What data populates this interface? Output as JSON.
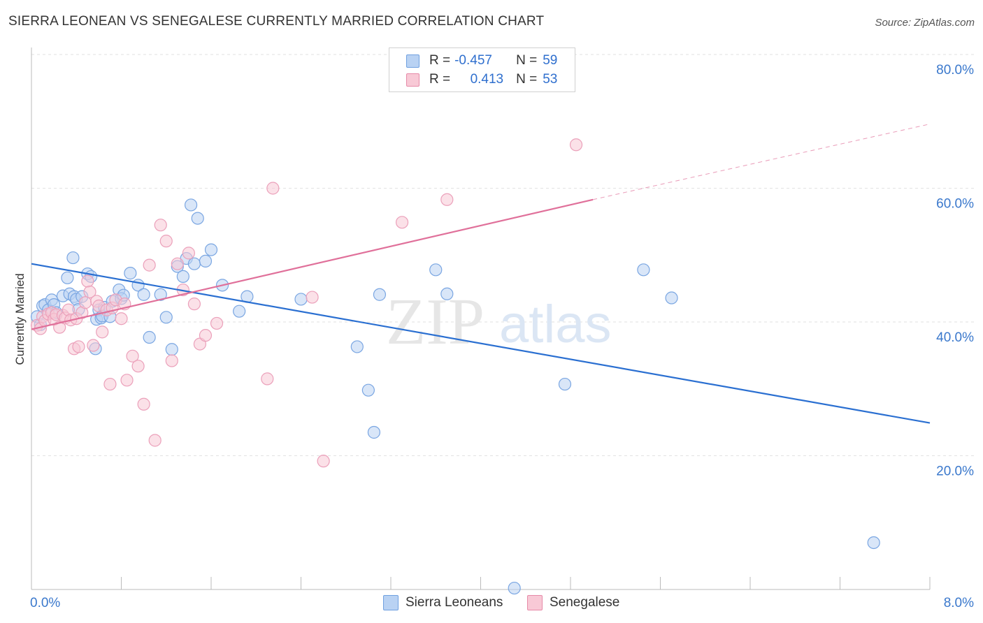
{
  "title": "SIERRA LEONEAN VS SENEGALESE CURRENTLY MARRIED CORRELATION CHART",
  "source": "Source: ZipAtlas.com",
  "watermark": {
    "zip": "ZIP",
    "atlas": "atlas"
  },
  "legend": {
    "series": [
      {
        "r_label": "R =",
        "r_value": "-0.457",
        "n_label": "N =",
        "n_value": "59",
        "color": "#6fa0e0",
        "fill": "#b9d2f3"
      },
      {
        "r_label": "R =",
        "r_value": "0.413",
        "n_label": "N =",
        "n_value": "53",
        "color": "#e68aa8",
        "fill": "#f8c9d6"
      }
    ]
  },
  "chart_data": {
    "type": "scatter",
    "title": "SIERRA LEONEAN VS SENEGALESE CURRENTLY MARRIED CORRELATION CHART",
    "xlabel": "",
    "ylabel": "Currently Married",
    "xlim": [
      0,
      8
    ],
    "ylim": [
      0,
      80
    ],
    "x_tick_labels": [
      "0.0%",
      "8.0%"
    ],
    "y_ticks": [
      20,
      40,
      60,
      80
    ],
    "y_tick_labels": [
      "20.0%",
      "40.0%",
      "60.0%",
      "80.0%"
    ],
    "grid": true,
    "legend_position": "bottom",
    "series": [
      {
        "name": "Sierra Leoneans",
        "color": "#2a6fd1",
        "point_fill": "#b9d2f3",
        "point_stroke": "#7aa6e2",
        "points": [
          [
            0.05,
            40.8
          ],
          [
            0.08,
            39.6
          ],
          [
            0.1,
            42.4
          ],
          [
            0.12,
            42.6
          ],
          [
            0.15,
            41.8
          ],
          [
            0.18,
            43.3
          ],
          [
            0.2,
            42.6
          ],
          [
            0.22,
            41.4
          ],
          [
            0.28,
            43.9
          ],
          [
            0.32,
            46.6
          ],
          [
            0.34,
            44.2
          ],
          [
            0.37,
            49.6
          ],
          [
            0.38,
            43.8
          ],
          [
            0.4,
            43.4
          ],
          [
            0.42,
            41.9
          ],
          [
            0.45,
            43.8
          ],
          [
            0.5,
            47.2
          ],
          [
            0.53,
            46.8
          ],
          [
            0.57,
            36.0
          ],
          [
            0.58,
            40.4
          ],
          [
            0.6,
            41.8
          ],
          [
            0.62,
            40.6
          ],
          [
            0.63,
            40.9
          ],
          [
            0.65,
            42.2
          ],
          [
            0.7,
            40.8
          ],
          [
            0.72,
            43.1
          ],
          [
            0.78,
            44.8
          ],
          [
            0.8,
            43.5
          ],
          [
            0.82,
            44.0
          ],
          [
            0.88,
            47.3
          ],
          [
            0.95,
            45.5
          ],
          [
            1.0,
            44.1
          ],
          [
            1.05,
            37.7
          ],
          [
            1.15,
            44.1
          ],
          [
            1.2,
            40.7
          ],
          [
            1.25,
            35.9
          ],
          [
            1.3,
            48.3
          ],
          [
            1.35,
            46.8
          ],
          [
            1.38,
            49.5
          ],
          [
            1.42,
            57.5
          ],
          [
            1.45,
            48.7
          ],
          [
            1.48,
            55.5
          ],
          [
            1.55,
            49.1
          ],
          [
            1.6,
            50.8
          ],
          [
            1.7,
            45.5
          ],
          [
            1.85,
            41.6
          ],
          [
            1.92,
            43.8
          ],
          [
            2.4,
            43.4
          ],
          [
            2.9,
            36.3
          ],
          [
            3.0,
            29.8
          ],
          [
            3.05,
            23.5
          ],
          [
            3.1,
            44.1
          ],
          [
            3.6,
            47.8
          ],
          [
            3.7,
            44.2
          ],
          [
            4.3,
            0.2
          ],
          [
            4.75,
            30.7
          ],
          [
            5.45,
            47.8
          ],
          [
            5.7,
            43.6
          ],
          [
            7.5,
            7.0
          ]
        ],
        "trend": {
          "x": [
            0,
            8
          ],
          "y": [
            48.7,
            24.9
          ],
          "style": "solid"
        }
      },
      {
        "name": "Senegalese",
        "color": "#e0709a",
        "point_fill": "#f8c9d6",
        "point_stroke": "#eba0ba",
        "points": [
          [
            0.05,
            39.5
          ],
          [
            0.08,
            39.0
          ],
          [
            0.1,
            40.8
          ],
          [
            0.12,
            40.2
          ],
          [
            0.15,
            41.2
          ],
          [
            0.18,
            41.4
          ],
          [
            0.2,
            40.4
          ],
          [
            0.22,
            41.1
          ],
          [
            0.25,
            39.2
          ],
          [
            0.28,
            41.0
          ],
          [
            0.3,
            40.6
          ],
          [
            0.33,
            41.8
          ],
          [
            0.35,
            40.3
          ],
          [
            0.38,
            36.0
          ],
          [
            0.4,
            40.5
          ],
          [
            0.42,
            36.3
          ],
          [
            0.45,
            41.4
          ],
          [
            0.48,
            42.9
          ],
          [
            0.5,
            46.1
          ],
          [
            0.52,
            44.5
          ],
          [
            0.55,
            36.5
          ],
          [
            0.58,
            43.1
          ],
          [
            0.6,
            42.4
          ],
          [
            0.63,
            38.5
          ],
          [
            0.67,
            41.8
          ],
          [
            0.7,
            30.7
          ],
          [
            0.72,
            42.1
          ],
          [
            0.75,
            43.3
          ],
          [
            0.8,
            40.5
          ],
          [
            0.83,
            42.7
          ],
          [
            0.85,
            31.3
          ],
          [
            0.9,
            34.9
          ],
          [
            0.95,
            33.4
          ],
          [
            1.0,
            27.7
          ],
          [
            1.05,
            48.5
          ],
          [
            1.1,
            22.3
          ],
          [
            1.15,
            54.5
          ],
          [
            1.2,
            52.1
          ],
          [
            1.25,
            34.2
          ],
          [
            1.3,
            48.7
          ],
          [
            1.35,
            44.8
          ],
          [
            1.4,
            50.3
          ],
          [
            1.45,
            42.7
          ],
          [
            1.5,
            36.7
          ],
          [
            1.55,
            38.0
          ],
          [
            1.65,
            39.8
          ],
          [
            2.1,
            31.5
          ],
          [
            2.15,
            60.0
          ],
          [
            2.5,
            43.7
          ],
          [
            2.6,
            19.2
          ],
          [
            3.3,
            54.9
          ],
          [
            3.7,
            58.3
          ],
          [
            4.85,
            66.5
          ]
        ],
        "trend": {
          "x": [
            0,
            5.0
          ],
          "y": [
            38.9,
            58.3
          ],
          "style": "solid"
        },
        "trend_extension": {
          "x": [
            5.0,
            8.0
          ],
          "y": [
            58.3,
            69.6
          ],
          "style": "dashed"
        }
      }
    ]
  }
}
